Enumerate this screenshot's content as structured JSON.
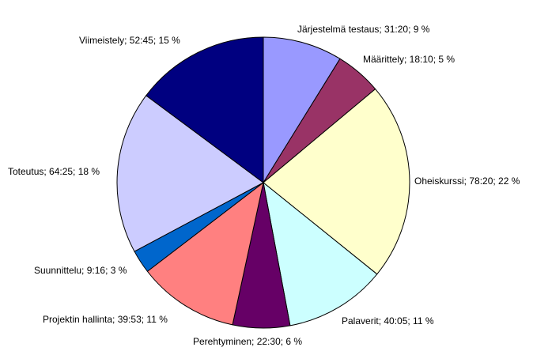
{
  "chart_data": {
    "type": "pie",
    "start_angle_deg": 0,
    "direction": "clockwise",
    "slices": [
      {
        "name": "Järjestelmä testaus",
        "time": "31:20",
        "percent": 9,
        "minutes": 31.333,
        "color": "#9999ff",
        "label": "Järjestelmä testaus; 31:20; 9 %"
      },
      {
        "name": "Määrittely",
        "time": "18:10",
        "percent": 5,
        "minutes": 18.167,
        "color": "#993366",
        "label": "Määrittely; 18:10; 5 %"
      },
      {
        "name": "Oheiskurssi",
        "time": "78:20",
        "percent": 22,
        "minutes": 78.333,
        "color": "#ffffcc",
        "label": "Oheiskurssi; 78:20; 22 %"
      },
      {
        "name": "Palaverit",
        "time": "40:05",
        "percent": 11,
        "minutes": 40.083,
        "color": "#ccffff",
        "label": "Palaverit; 40:05; 11 %"
      },
      {
        "name": "Perehtyminen",
        "time": "22:30",
        "percent": 6,
        "minutes": 22.5,
        "color": "#660066",
        "label": "Perehtyminen; 22:30; 6 %"
      },
      {
        "name": "Projektin hallinta",
        "time": "39:53",
        "percent": 11,
        "minutes": 39.883,
        "color": "#ff8080",
        "label": "Projektin hallinta; 39:53; 11 %"
      },
      {
        "name": "Suunnittelu",
        "time": "9:16",
        "percent": 3,
        "minutes": 9.267,
        "color": "#0066cc",
        "label": "Suunnittelu; 9:16; 3 %"
      },
      {
        "name": "Toteutus",
        "time": "64:25",
        "percent": 18,
        "minutes": 64.417,
        "color": "#ccccff",
        "label": "Toteutus; 64:25; 18 %"
      },
      {
        "name": "Viimeistely",
        "time": "52:45",
        "percent": 15,
        "minutes": 52.75,
        "color": "#000080",
        "label": "Viimeistely; 52:45; 15 %"
      }
    ]
  }
}
